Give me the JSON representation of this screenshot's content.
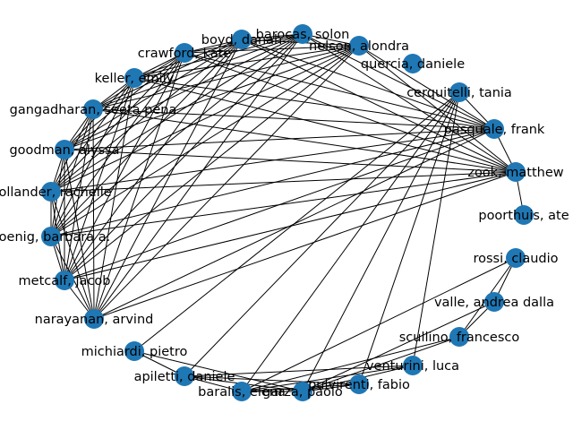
{
  "graph": {
    "node_color": "#1f77b4",
    "edge_color": "#000000",
    "nodes": [
      {
        "id": "barocas",
        "label": "barocas, solon"
      },
      {
        "id": "nelson",
        "label": "nelson, alondra"
      },
      {
        "id": "quercia",
        "label": "quercia, daniele"
      },
      {
        "id": "cerquitelli",
        "label": "cerquitelli, tania"
      },
      {
        "id": "pasquale",
        "label": "pasquale, frank"
      },
      {
        "id": "zook",
        "label": "zook, matthew"
      },
      {
        "id": "poorthuis",
        "label": "poorthuis, ate"
      },
      {
        "id": "rossi",
        "label": "rossi, claudio"
      },
      {
        "id": "valle",
        "label": "valle, andrea dalla"
      },
      {
        "id": "scullino",
        "label": "scullino, francesco"
      },
      {
        "id": "venturini",
        "label": "venturini, luca"
      },
      {
        "id": "pulvirenti",
        "label": "pulvirenti, fabio"
      },
      {
        "id": "garza",
        "label": "garza, paolo"
      },
      {
        "id": "baralis",
        "label": "baralis, elena"
      },
      {
        "id": "apiletti",
        "label": "apiletti, daniele"
      },
      {
        "id": "michiardi",
        "label": "michiardi, pietro"
      },
      {
        "id": "narayanan",
        "label": "narayanan, arvind"
      },
      {
        "id": "metcalf",
        "label": "metcalf, jacob"
      },
      {
        "id": "koenig",
        "label": "koenig, barbara a."
      },
      {
        "id": "hollander",
        "label": "hollander, rachelle"
      },
      {
        "id": "goodman",
        "label": "goodman, alyssa"
      },
      {
        "id": "gangadharan",
        "label": "gangadharan, seeta pena"
      },
      {
        "id": "keller",
        "label": "keller, emily"
      },
      {
        "id": "crawford",
        "label": "crawford, kate"
      },
      {
        "id": "boyd",
        "label": "boyd, danah"
      }
    ],
    "edges": [
      [
        "boyd",
        "crawford"
      ],
      [
        "boyd",
        "keller"
      ],
      [
        "boyd",
        "gangadharan"
      ],
      [
        "boyd",
        "goodman"
      ],
      [
        "boyd",
        "hollander"
      ],
      [
        "boyd",
        "koenig"
      ],
      [
        "boyd",
        "metcalf"
      ],
      [
        "boyd",
        "narayanan"
      ],
      [
        "boyd",
        "barocas"
      ],
      [
        "boyd",
        "nelson"
      ],
      [
        "boyd",
        "pasquale"
      ],
      [
        "boyd",
        "zook"
      ],
      [
        "crawford",
        "keller"
      ],
      [
        "crawford",
        "gangadharan"
      ],
      [
        "crawford",
        "goodman"
      ],
      [
        "crawford",
        "hollander"
      ],
      [
        "crawford",
        "koenig"
      ],
      [
        "crawford",
        "metcalf"
      ],
      [
        "crawford",
        "narayanan"
      ],
      [
        "crawford",
        "barocas"
      ],
      [
        "crawford",
        "nelson"
      ],
      [
        "crawford",
        "pasquale"
      ],
      [
        "crawford",
        "zook"
      ],
      [
        "keller",
        "gangadharan"
      ],
      [
        "keller",
        "goodman"
      ],
      [
        "keller",
        "hollander"
      ],
      [
        "keller",
        "koenig"
      ],
      [
        "keller",
        "metcalf"
      ],
      [
        "keller",
        "narayanan"
      ],
      [
        "keller",
        "barocas"
      ],
      [
        "keller",
        "nelson"
      ],
      [
        "keller",
        "pasquale"
      ],
      [
        "keller",
        "zook"
      ],
      [
        "gangadharan",
        "goodman"
      ],
      [
        "gangadharan",
        "hollander"
      ],
      [
        "gangadharan",
        "koenig"
      ],
      [
        "gangadharan",
        "metcalf"
      ],
      [
        "gangadharan",
        "narayanan"
      ],
      [
        "gangadharan",
        "barocas"
      ],
      [
        "gangadharan",
        "nelson"
      ],
      [
        "gangadharan",
        "pasquale"
      ],
      [
        "gangadharan",
        "zook"
      ],
      [
        "goodman",
        "hollander"
      ],
      [
        "goodman",
        "koenig"
      ],
      [
        "goodman",
        "metcalf"
      ],
      [
        "goodman",
        "narayanan"
      ],
      [
        "goodman",
        "barocas"
      ],
      [
        "goodman",
        "nelson"
      ],
      [
        "goodman",
        "pasquale"
      ],
      [
        "goodman",
        "zook"
      ],
      [
        "hollander",
        "koenig"
      ],
      [
        "hollander",
        "metcalf"
      ],
      [
        "hollander",
        "narayanan"
      ],
      [
        "hollander",
        "barocas"
      ],
      [
        "hollander",
        "nelson"
      ],
      [
        "hollander",
        "pasquale"
      ],
      [
        "hollander",
        "zook"
      ],
      [
        "koenig",
        "metcalf"
      ],
      [
        "koenig",
        "narayanan"
      ],
      [
        "koenig",
        "barocas"
      ],
      [
        "koenig",
        "nelson"
      ],
      [
        "koenig",
        "pasquale"
      ],
      [
        "koenig",
        "zook"
      ],
      [
        "metcalf",
        "narayanan"
      ],
      [
        "metcalf",
        "barocas"
      ],
      [
        "metcalf",
        "nelson"
      ],
      [
        "metcalf",
        "pasquale"
      ],
      [
        "metcalf",
        "zook"
      ],
      [
        "narayanan",
        "barocas"
      ],
      [
        "narayanan",
        "nelson"
      ],
      [
        "narayanan",
        "pasquale"
      ],
      [
        "narayanan",
        "zook"
      ],
      [
        "barocas",
        "nelson"
      ],
      [
        "barocas",
        "pasquale"
      ],
      [
        "barocas",
        "zook"
      ],
      [
        "nelson",
        "pasquale"
      ],
      [
        "nelson",
        "zook"
      ],
      [
        "pasquale",
        "zook"
      ],
      [
        "zook",
        "poorthuis"
      ],
      [
        "cerquitelli",
        "baralis"
      ],
      [
        "cerquitelli",
        "apiletti"
      ],
      [
        "cerquitelli",
        "garza"
      ],
      [
        "cerquitelli",
        "pulvirenti"
      ],
      [
        "cerquitelli",
        "venturini"
      ],
      [
        "cerquitelli",
        "michiardi"
      ],
      [
        "cerquitelli",
        "pasquale"
      ],
      [
        "rossi",
        "valle"
      ],
      [
        "rossi",
        "scullino"
      ],
      [
        "rossi",
        "baralis"
      ],
      [
        "valle",
        "scullino"
      ],
      [
        "valle",
        "garza"
      ],
      [
        "scullino",
        "baralis"
      ],
      [
        "scullino",
        "garza"
      ],
      [
        "venturini",
        "baralis"
      ],
      [
        "venturini",
        "garza"
      ],
      [
        "venturini",
        "apiletti"
      ],
      [
        "pulvirenti",
        "baralis"
      ],
      [
        "pulvirenti",
        "garza"
      ],
      [
        "pulvirenti",
        "apiletti"
      ],
      [
        "garza",
        "baralis"
      ],
      [
        "garza",
        "apiletti"
      ],
      [
        "baralis",
        "apiletti"
      ],
      [
        "apiletti",
        "michiardi"
      ],
      [
        "michiardi",
        "garza"
      ]
    ]
  }
}
